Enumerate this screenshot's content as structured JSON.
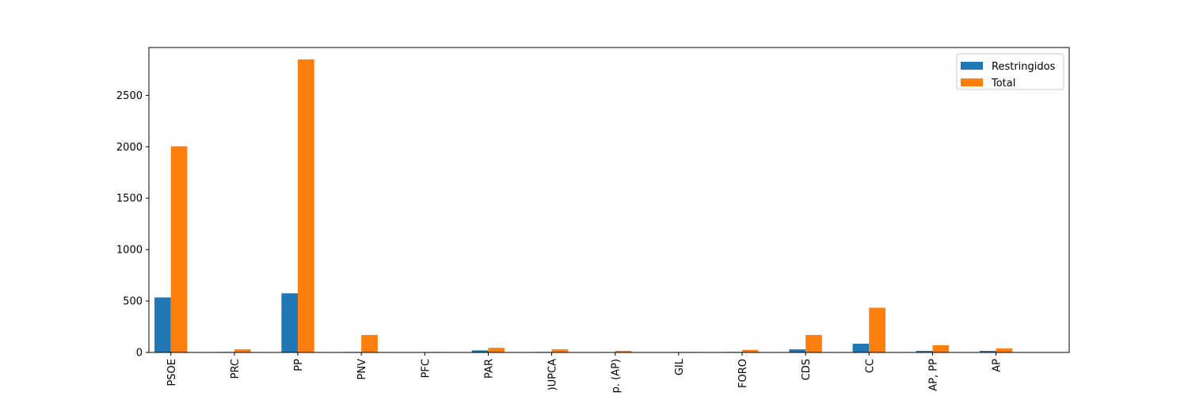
{
  "chart_data": {
    "type": "bar",
    "title": "",
    "xlabel": "",
    "ylabel": "",
    "categories": [
      "PSOE",
      "PRC",
      "PP",
      "PNV",
      "PFC",
      "PAR",
      ")UPCA",
      "p. (AP)",
      "GIL",
      "FORO",
      "CDS",
      "CC",
      "AP, PP",
      "AP"
    ],
    "series": [
      {
        "name": "Restringidos",
        "color": "#1f77b4",
        "values": [
          535,
          5,
          575,
          5,
          0,
          20,
          5,
          0,
          0,
          5,
          30,
          85,
          15,
          15
        ]
      },
      {
        "name": "Total",
        "color": "#ff7f0e",
        "values": [
          2005,
          30,
          2850,
          170,
          5,
          45,
          30,
          15,
          5,
          25,
          170,
          435,
          70,
          40
        ]
      }
    ],
    "yticks": [
      0,
      500,
      1000,
      1500,
      2000,
      2500
    ],
    "ylim": [
      0,
      2965
    ],
    "grid": false,
    "legend_position": "top-right"
  }
}
